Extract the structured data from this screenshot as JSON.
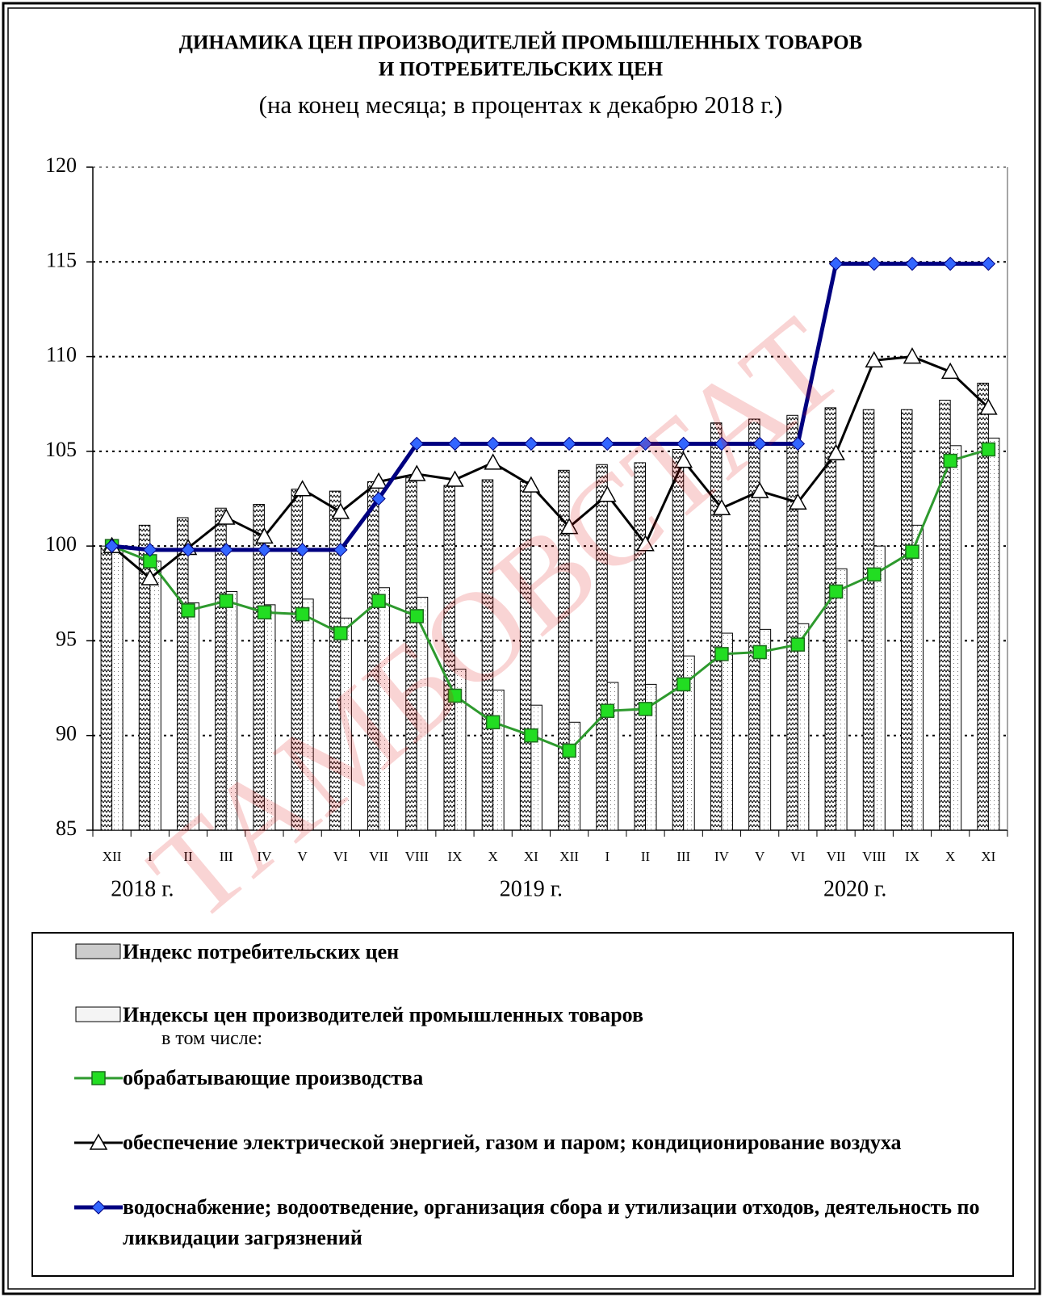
{
  "chart_data": {
    "type": "bar_line",
    "title": [
      "ДИНАМИКА  ЦЕН  ПРОИЗВОДИТЕЛЕЙ  ПРОМЫШЛЕННЫХ ТОВАРОВ",
      "И  ПОТРЕБИТЕЛЬСКИХ  ЦЕН"
    ],
    "subtitle": "(на конец месяца; в процентах к декабрю 2018 г.)",
    "watermark": "ТАМБОВСТАТ",
    "categories": [
      "XII",
      "I",
      "II",
      "III",
      "IV",
      "V",
      "VI",
      "VII",
      "VIII",
      "IX",
      "X",
      "XI",
      "XII",
      "I",
      "II",
      "III",
      "IV",
      "V",
      "VI",
      "VII",
      "VIII",
      "IX",
      "X",
      "XI"
    ],
    "year_labels": [
      "2018 г.",
      "2019 г.",
      "2020 г."
    ],
    "ylim": [
      85,
      120
    ],
    "yticks": [
      85,
      90,
      95,
      100,
      105,
      110,
      115,
      120
    ],
    "grid": true,
    "legend_note": "в том числе:",
    "series": [
      {
        "name": "Индекс потребительских цен",
        "kind": "bar",
        "pattern": "hatch",
        "color": "#000000",
        "values": [
          100,
          101.1,
          101.5,
          102.0,
          102.2,
          103.0,
          102.9,
          103.4,
          103.6,
          103.2,
          103.5,
          103.4,
          104.0,
          104.3,
          104.4,
          105.1,
          106.5,
          106.7,
          106.9,
          107.3,
          107.2,
          107.2,
          107.7,
          108.6
        ]
      },
      {
        "name": "Индексы цен производителей промышленных товаров",
        "kind": "bar",
        "pattern": "dots",
        "color": "#000000",
        "values": [
          100,
          99.2,
          97.0,
          97.6,
          96.9,
          97.2,
          96.2,
          97.8,
          97.3,
          93.5,
          92.4,
          91.6,
          90.7,
          92.8,
          92.7,
          94.2,
          95.4,
          95.6,
          95.9,
          98.8,
          100.0,
          101.1,
          105.3,
          105.7
        ]
      },
      {
        "name": "обрабатывающие производства",
        "kind": "line",
        "marker": "square",
        "color": "#2e9a2e",
        "marker_color": "#22dd22",
        "values": [
          100,
          99.2,
          96.6,
          97.1,
          96.5,
          96.4,
          95.4,
          97.1,
          96.3,
          92.1,
          90.7,
          90.0,
          89.2,
          91.3,
          91.4,
          92.7,
          94.3,
          94.4,
          94.8,
          97.6,
          98.5,
          99.7,
          104.5,
          105.1
        ]
      },
      {
        "name": "обеспечение электрической энергией, газом и паром; кондиционирование воздуха",
        "kind": "line",
        "marker": "triangle",
        "color": "#000000",
        "marker_color": "#ffffff",
        "values": [
          100,
          98.3,
          99.9,
          101.5,
          100.5,
          103.0,
          101.8,
          103.4,
          103.8,
          103.5,
          104.4,
          103.2,
          101.0,
          102.7,
          100.1,
          104.5,
          102.0,
          102.9,
          102.3,
          104.9,
          109.8,
          110.0,
          109.2,
          107.3
        ]
      },
      {
        "name": "водоснабжение; водоотведение, организация сбора и утилизации отходов, деятельность по ликвидации загрязнений",
        "kind": "line",
        "marker": "diamond",
        "color": "#000080",
        "marker_color": "#3366ff",
        "values": [
          100,
          99.8,
          99.8,
          99.8,
          99.8,
          99.8,
          99.8,
          102.5,
          105.4,
          105.4,
          105.4,
          105.4,
          105.4,
          105.4,
          105.4,
          105.4,
          105.4,
          105.4,
          105.4,
          114.9,
          114.9,
          114.9,
          114.9,
          114.9
        ]
      }
    ]
  }
}
